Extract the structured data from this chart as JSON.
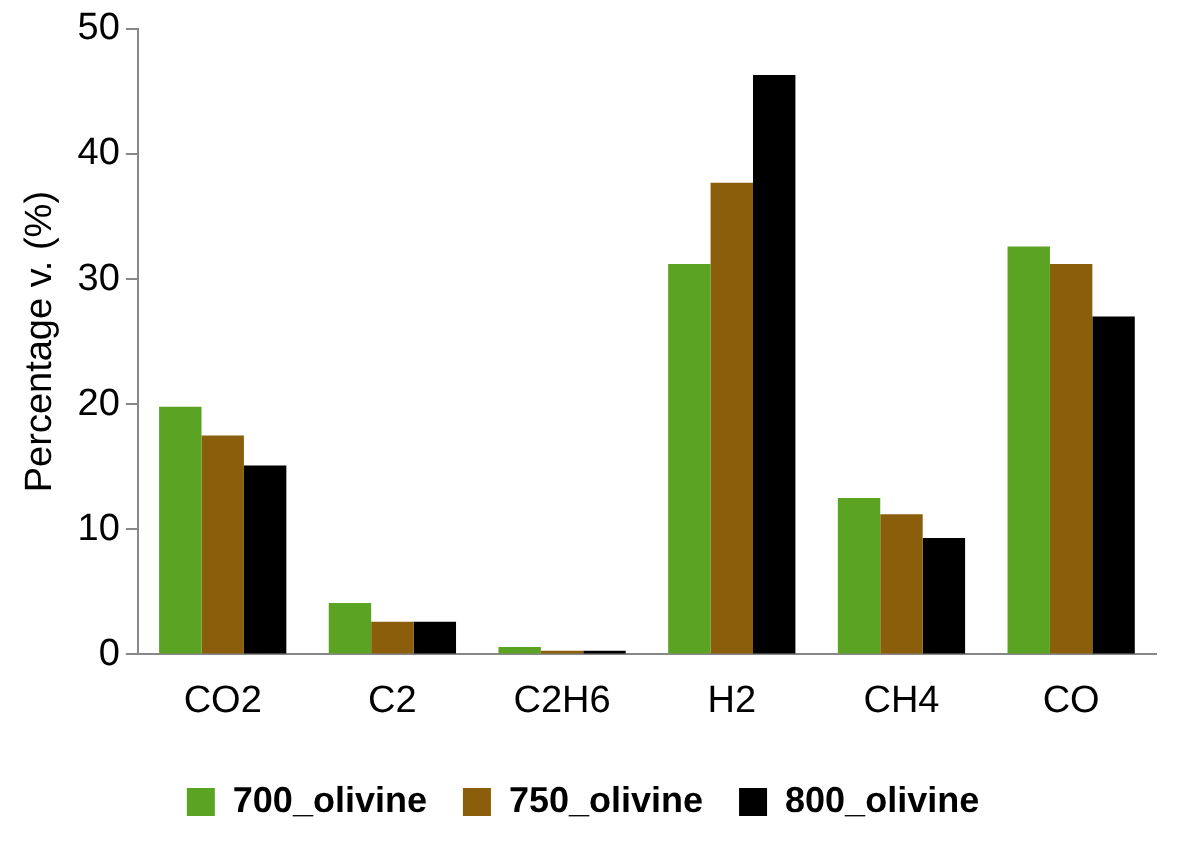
{
  "chart_data": {
    "type": "bar",
    "ylabel": "Percentage v. (%)",
    "categories": [
      "CO2",
      "C2",
      "C2H6",
      "H2",
      "CH4",
      "CO"
    ],
    "series": [
      {
        "name": "700_olivine",
        "color": "#5ba323",
        "values": [
          19.8,
          4.1,
          0.6,
          31.2,
          12.5,
          32.6
        ]
      },
      {
        "name": "750_olivine",
        "color": "#8b5e0c",
        "values": [
          17.5,
          2.6,
          0.3,
          37.7,
          11.2,
          31.2
        ]
      },
      {
        "name": "800_olivine",
        "color": "#000000",
        "values": [
          15.1,
          2.6,
          0.3,
          46.3,
          9.3,
          27.0
        ]
      }
    ],
    "ylim": [
      0,
      50
    ],
    "yticks": [
      0,
      10,
      20,
      30,
      40,
      50
    ],
    "grid": false,
    "legend": "bottom"
  }
}
